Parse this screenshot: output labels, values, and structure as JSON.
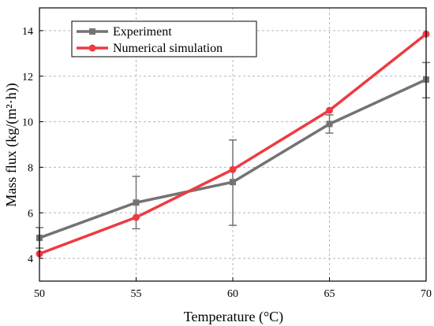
{
  "chart_data": {
    "type": "line",
    "xlabel": "Temperature (°C)",
    "ylabel": "Mass flux (kg/(m²·h))",
    "xlim": [
      50,
      70
    ],
    "ylim": [
      3,
      15
    ],
    "xticks": [
      50,
      55,
      60,
      65,
      70
    ],
    "yticks": [
      4,
      6,
      8,
      10,
      12,
      14
    ],
    "grid": true,
    "legend_position": "top-left",
    "x": [
      50,
      55,
      60,
      65,
      70
    ],
    "series": [
      {
        "name": "Experiment",
        "values": [
          4.9,
          6.45,
          7.35,
          9.9,
          11.85
        ],
        "error_low": [
          4.45,
          5.3,
          5.45,
          9.5,
          11.05
        ],
        "error_high": [
          5.35,
          7.6,
          9.2,
          10.3,
          12.6
        ],
        "color": "#737373",
        "marker": "square"
      },
      {
        "name": "Numerical simulation",
        "values": [
          4.2,
          5.8,
          7.9,
          10.5,
          13.85
        ],
        "color": "#ee3a43",
        "marker": "circle"
      }
    ]
  }
}
